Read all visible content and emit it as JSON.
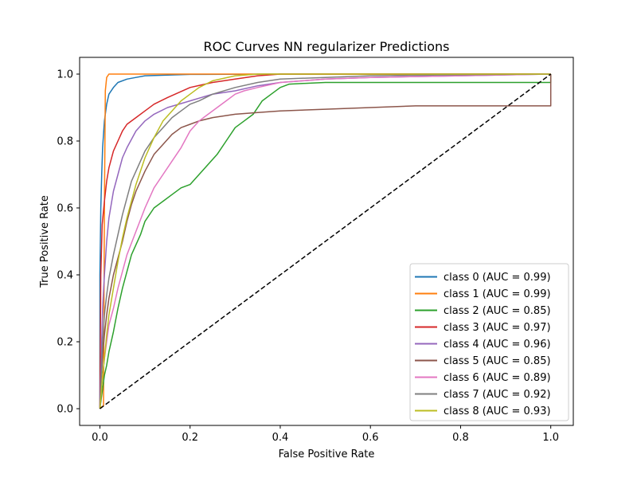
{
  "chart_data": {
    "type": "line",
    "title": "ROC Curves NN regularizer Predictions",
    "xlabel": "False Positive Rate",
    "ylabel": "True Positive Rate",
    "xlim": [
      -0.045,
      1.05
    ],
    "ylim": [
      -0.05,
      1.05
    ],
    "xticks": [
      0.0,
      0.2,
      0.4,
      0.6,
      0.8,
      1.0
    ],
    "yticks": [
      0.0,
      0.2,
      0.4,
      0.6,
      0.8,
      1.0
    ],
    "xtick_labels": [
      "0.0",
      "0.2",
      "0.4",
      "0.6",
      "0.8",
      "1.0"
    ],
    "ytick_labels": [
      "0.0",
      "0.2",
      "0.4",
      "0.6",
      "0.8",
      "1.0"
    ],
    "grid": false,
    "legend_position": "lower-right",
    "diagonal": {
      "x": [
        0,
        1
      ],
      "y": [
        0,
        1
      ],
      "color": "#000000",
      "style": "dashed"
    },
    "series": [
      {
        "name": "class 0 (AUC = 0.99)",
        "color": "#1f77b4",
        "x": [
          0,
          0.0,
          0.002,
          0.004,
          0.006,
          0.01,
          0.015,
          0.02,
          0.03,
          0.04,
          0.06,
          0.08,
          0.1,
          0.15,
          0.2,
          0.4,
          0.6,
          0.8,
          1.0
        ],
        "y": [
          0,
          0.4,
          0.6,
          0.7,
          0.78,
          0.86,
          0.91,
          0.94,
          0.96,
          0.975,
          0.985,
          0.99,
          0.995,
          0.997,
          0.999,
          1.0,
          1.0,
          1.0,
          1.0
        ]
      },
      {
        "name": "class 1 (AUC = 0.99)",
        "color": "#ff7f0e",
        "x": [
          0,
          0.0,
          0.002,
          0.005,
          0.008,
          0.01,
          0.012,
          0.015,
          0.02,
          0.05,
          0.1,
          0.3,
          0.6,
          1.0,
          1.0
        ],
        "y": [
          0,
          0.0,
          0.005,
          0.005,
          0.01,
          0.6,
          0.95,
          0.99,
          1.0,
          1.0,
          1.0,
          1.0,
          1.0,
          1.0,
          1.0
        ]
      },
      {
        "name": "class 2 (AUC = 0.85)",
        "color": "#2ca02c",
        "x": [
          0,
          0.003,
          0.006,
          0.01,
          0.015,
          0.02,
          0.03,
          0.04,
          0.05,
          0.06,
          0.07,
          0.08,
          0.09,
          0.1,
          0.12,
          0.14,
          0.16,
          0.18,
          0.2,
          0.22,
          0.24,
          0.26,
          0.28,
          0.3,
          0.32,
          0.34,
          0.36,
          0.38,
          0.4,
          0.42,
          0.45,
          0.5,
          0.6,
          0.8,
          1.0,
          1.0
        ],
        "y": [
          0,
          0.03,
          0.06,
          0.1,
          0.13,
          0.17,
          0.23,
          0.3,
          0.36,
          0.41,
          0.46,
          0.49,
          0.52,
          0.56,
          0.6,
          0.62,
          0.64,
          0.66,
          0.67,
          0.7,
          0.73,
          0.76,
          0.8,
          0.84,
          0.86,
          0.88,
          0.92,
          0.94,
          0.96,
          0.97,
          0.972,
          0.975,
          0.975,
          0.975,
          0.975,
          1.0
        ]
      },
      {
        "name": "class 3 (AUC = 0.97)",
        "color": "#d62728",
        "x": [
          0,
          0.002,
          0.005,
          0.01,
          0.015,
          0.02,
          0.03,
          0.04,
          0.05,
          0.06,
          0.08,
          0.1,
          0.12,
          0.15,
          0.2,
          0.25,
          0.3,
          0.35,
          0.4,
          0.5,
          0.7,
          1.0
        ],
        "y": [
          0,
          0.4,
          0.55,
          0.62,
          0.68,
          0.72,
          0.77,
          0.8,
          0.83,
          0.85,
          0.87,
          0.89,
          0.91,
          0.93,
          0.96,
          0.975,
          0.985,
          0.995,
          1.0,
          1.0,
          1.0,
          1.0
        ]
      },
      {
        "name": "class 4 (AUC = 0.96)",
        "color": "#9467bd",
        "x": [
          0,
          0.003,
          0.006,
          0.01,
          0.015,
          0.02,
          0.03,
          0.04,
          0.05,
          0.06,
          0.08,
          0.1,
          0.12,
          0.15,
          0.2,
          0.25,
          0.3,
          0.35,
          0.4,
          0.5,
          0.6,
          0.8,
          1.0
        ],
        "y": [
          0,
          0.15,
          0.3,
          0.4,
          0.5,
          0.57,
          0.65,
          0.7,
          0.75,
          0.78,
          0.83,
          0.86,
          0.88,
          0.9,
          0.92,
          0.94,
          0.95,
          0.965,
          0.975,
          0.985,
          0.99,
          0.995,
          1.0
        ]
      },
      {
        "name": "class 5 (AUC = 0.85)",
        "color": "#8c564b",
        "x": [
          0,
          0.003,
          0.006,
          0.01,
          0.015,
          0.02,
          0.03,
          0.04,
          0.05,
          0.06,
          0.07,
          0.08,
          0.1,
          0.12,
          0.14,
          0.16,
          0.18,
          0.2,
          0.22,
          0.25,
          0.3,
          0.35,
          0.4,
          0.5,
          0.6,
          0.7,
          0.8,
          0.9,
          1.0,
          1.0,
          1.0
        ],
        "y": [
          0,
          0.08,
          0.16,
          0.22,
          0.28,
          0.33,
          0.4,
          0.45,
          0.5,
          0.56,
          0.61,
          0.65,
          0.71,
          0.76,
          0.79,
          0.82,
          0.84,
          0.85,
          0.86,
          0.87,
          0.88,
          0.885,
          0.89,
          0.895,
          0.9,
          0.905,
          0.905,
          0.905,
          0.905,
          0.905,
          1.0
        ]
      },
      {
        "name": "class 6 (AUC = 0.89)",
        "color": "#e377c2",
        "x": [
          0,
          0.003,
          0.006,
          0.01,
          0.015,
          0.02,
          0.03,
          0.04,
          0.05,
          0.06,
          0.08,
          0.1,
          0.12,
          0.14,
          0.16,
          0.18,
          0.2,
          0.22,
          0.24,
          0.26,
          0.28,
          0.3,
          0.32,
          0.35,
          0.4,
          0.5,
          0.6,
          0.8,
          1.0
        ],
        "y": [
          0,
          0.05,
          0.1,
          0.15,
          0.2,
          0.25,
          0.3,
          0.36,
          0.41,
          0.46,
          0.53,
          0.6,
          0.66,
          0.7,
          0.74,
          0.78,
          0.83,
          0.86,
          0.88,
          0.9,
          0.92,
          0.94,
          0.95,
          0.96,
          0.975,
          0.985,
          0.99,
          0.995,
          1.0
        ]
      },
      {
        "name": "class 7 (AUC = 0.92)",
        "color": "#7f7f7f",
        "x": [
          0,
          0.003,
          0.006,
          0.01,
          0.015,
          0.02,
          0.03,
          0.04,
          0.05,
          0.06,
          0.07,
          0.08,
          0.1,
          0.12,
          0.14,
          0.16,
          0.18,
          0.2,
          0.22,
          0.25,
          0.3,
          0.35,
          0.4,
          0.5,
          0.6,
          0.8,
          1.0
        ],
        "y": [
          0,
          0.1,
          0.2,
          0.28,
          0.34,
          0.39,
          0.46,
          0.52,
          0.58,
          0.63,
          0.68,
          0.71,
          0.77,
          0.81,
          0.84,
          0.87,
          0.89,
          0.91,
          0.92,
          0.94,
          0.96,
          0.975,
          0.985,
          0.99,
          0.995,
          0.998,
          1.0
        ]
      },
      {
        "name": "class 8 (AUC = 0.93)",
        "color": "#bcbd22",
        "x": [
          0,
          0.003,
          0.006,
          0.01,
          0.015,
          0.02,
          0.03,
          0.04,
          0.05,
          0.06,
          0.07,
          0.08,
          0.09,
          0.1,
          0.12,
          0.14,
          0.16,
          0.18,
          0.2,
          0.22,
          0.25,
          0.3,
          0.35,
          0.4,
          0.5,
          0.6,
          0.8,
          1.0
        ],
        "y": [
          0,
          0.05,
          0.1,
          0.15,
          0.22,
          0.28,
          0.36,
          0.44,
          0.51,
          0.57,
          0.62,
          0.67,
          0.71,
          0.75,
          0.81,
          0.86,
          0.89,
          0.92,
          0.94,
          0.96,
          0.98,
          0.995,
          1.0,
          1.0,
          1.0,
          1.0,
          1.0,
          1.0
        ]
      }
    ]
  }
}
